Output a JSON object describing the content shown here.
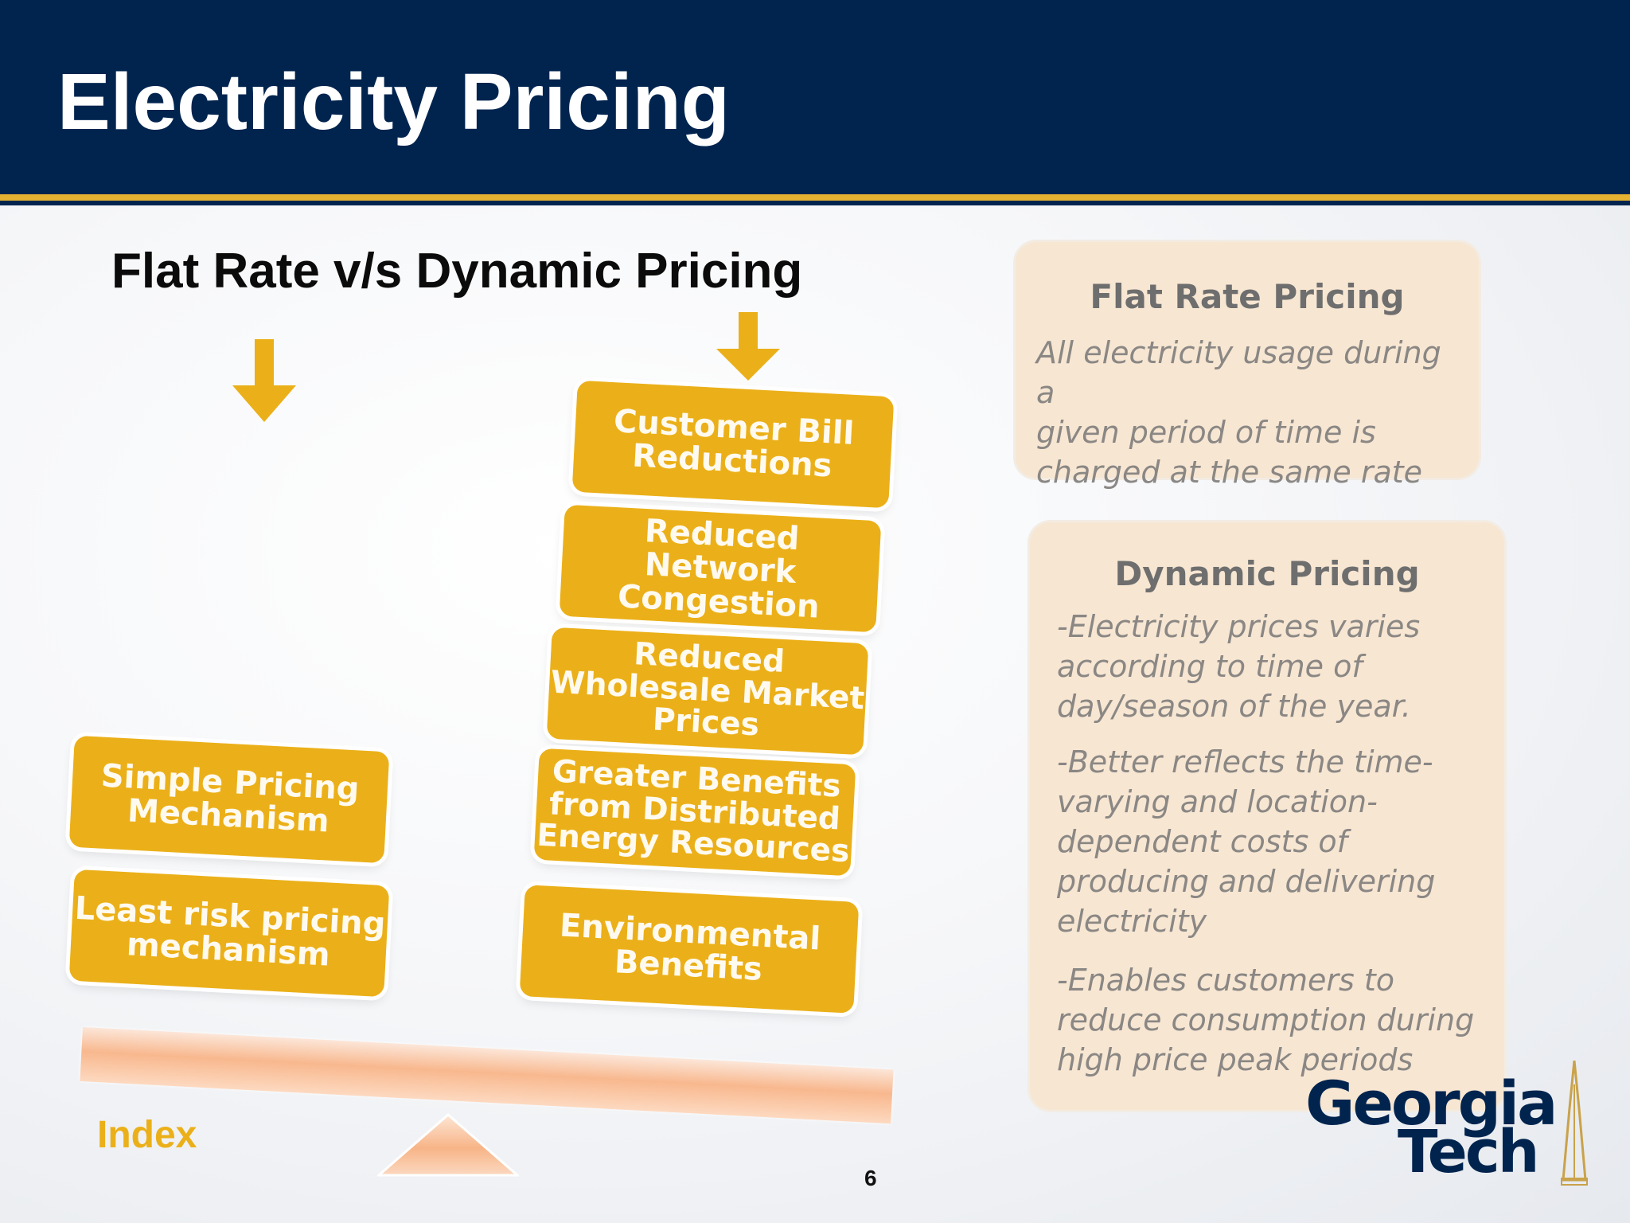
{
  "slide": {
    "title": "Electricity Pricing",
    "subtitle": "Flat Rate v/s Dynamic Pricing",
    "page_number": "6",
    "index_link": "Index"
  },
  "left_stack": [
    "Simple Pricing\nMechanism",
    "Least risk pricing\nmechanism"
  ],
  "right_stack": [
    "Customer Bill\nReductions",
    "Reduced Network\nCongestion",
    "Reduced\nWholesale Market\nPrices",
    "Greater Benefits\nfrom Distributed\nEnergy Resources",
    "Environmental\nBenefits"
  ],
  "flat_panel": {
    "title": "Flat Rate Pricing",
    "text": "All electricity usage during a\ngiven period of time is\ncharged at the same rate"
  },
  "dynamic_panel": {
    "title": "Dynamic Pricing",
    "points": [
      "-Electricity prices varies\naccording to time of\nday/season of the year.",
      "-Better reflects the time-\nvarying and location-\ndependent costs of\nproducing and delivering\nelectricity",
      "-Enables customers to\nreduce consumption during\nhigh price peak periods"
    ]
  },
  "logo": {
    "line1": "Georgia",
    "line2": "Tech"
  },
  "colors": {
    "navy": "#01244f",
    "gold": "#ebb019",
    "panel": "#f7e6d2"
  }
}
